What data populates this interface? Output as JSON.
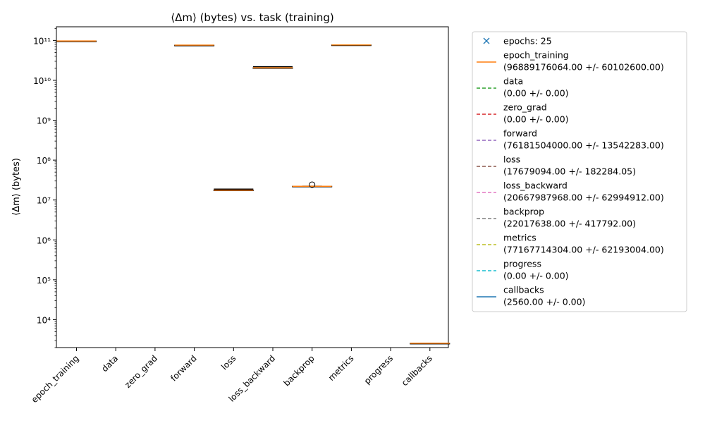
{
  "chart_data": {
    "type": "box",
    "title": "⟨Δm⟩ (bytes) vs. task (training)",
    "ylabel": "⟨Δm⟩ (bytes)",
    "xlabel": "",
    "yscale": "log",
    "ylim": [
      2000,
      220000000000.0
    ],
    "y_ticks": [
      {
        "value": 10000,
        "label": "10⁴"
      },
      {
        "value": 100000,
        "label": "10⁵"
      },
      {
        "value": 1000000,
        "label": "10⁶"
      },
      {
        "value": 10000000,
        "label": "10⁷"
      },
      {
        "value": 100000000,
        "label": "10⁸"
      },
      {
        "value": 1000000000,
        "label": "10⁹"
      },
      {
        "value": 10000000000,
        "label": "10¹⁰"
      },
      {
        "value": 100000000000,
        "label": "10¹¹"
      }
    ],
    "categories": [
      "epoch_training",
      "data",
      "zero_grad",
      "forward",
      "loss",
      "loss_backward",
      "backprop",
      "metrics",
      "progress",
      "callbacks"
    ],
    "boxes": [
      {
        "category": "epoch_training",
        "q1": 96860000000,
        "median": 96889176064,
        "q3": 96920000000,
        "whisker_low": 96790000000,
        "whisker_high": 96990000000,
        "mean_line": false,
        "outliers": []
      },
      {
        "category": "data",
        "q1": null,
        "median": null,
        "q3": null,
        "whisker_low": null,
        "whisker_high": null,
        "outliers": []
      },
      {
        "category": "zero_grad",
        "q1": null,
        "median": null,
        "q3": null,
        "whisker_low": null,
        "whisker_high": null,
        "outliers": []
      },
      {
        "category": "forward",
        "q1": 76170000000,
        "median": 76181504000,
        "q3": 76195000000,
        "whisker_low": 76150000000,
        "whisker_high": 76210000000,
        "mean_line": false,
        "outliers": []
      },
      {
        "category": "loss",
        "q1": 17560000.0,
        "median": 17679094,
        "q3": 17790000,
        "whisker_low": 17300000,
        "whisker_high": 18000000,
        "mean_line": true,
        "outliers": []
      },
      {
        "category": "loss_backward",
        "q1": 20620000000,
        "median": 20667987968,
        "q3": 20720000000,
        "whisker_low": 20560000000,
        "whisker_high": 20780000000,
        "mean_line": true,
        "outliers": []
      },
      {
        "category": "backprop",
        "q1": 21800000,
        "median": 22017638,
        "q3": 22200000,
        "whisker_low": 21600000,
        "whisker_high": 22400000,
        "mean_line": false,
        "outliers": [
          24200000
        ]
      },
      {
        "category": "metrics",
        "q1": 77140000000,
        "median": 77167714304,
        "q3": 77200000000,
        "whisker_low": 77090000000,
        "whisker_high": 77250000000,
        "mean_line": false,
        "outliers": []
      },
      {
        "category": "progress",
        "q1": null,
        "median": null,
        "q3": null,
        "whisker_low": null,
        "whisker_high": null,
        "outliers": []
      },
      {
        "category": "callbacks",
        "q1": 2560,
        "median": 2560,
        "q3": 2560,
        "whisker_low": 2560,
        "whisker_high": 2560,
        "mean_line": false,
        "outliers": []
      }
    ],
    "legend": {
      "placement": "outside-right",
      "entries": [
        {
          "marker": "x",
          "style": "none",
          "color": "#1f77b4",
          "line1": "epochs: 25",
          "line2": ""
        },
        {
          "marker": "line",
          "style": "solid",
          "color": "#ff7f0e",
          "line1": "epoch_training",
          "line2": "(96889176064.00 +/- 60102600.00)"
        },
        {
          "marker": "line",
          "style": "dashed",
          "color": "#2ca02c",
          "line1": "data",
          "line2": "(0.00 +/- 0.00)"
        },
        {
          "marker": "line",
          "style": "dashed",
          "color": "#d62728",
          "line1": "zero_grad",
          "line2": "(0.00 +/- 0.00)"
        },
        {
          "marker": "line",
          "style": "dashed",
          "color": "#9467bd",
          "line1": "forward",
          "line2": "(76181504000.00 +/- 13542283.00)"
        },
        {
          "marker": "line",
          "style": "dashed",
          "color": "#8c564b",
          "line1": "loss",
          "line2": "(17679094.00 +/- 182284.05)"
        },
        {
          "marker": "line",
          "style": "dashed",
          "color": "#e377c2",
          "line1": "loss_backward",
          "line2": "(20667987968.00 +/- 62994912.00)"
        },
        {
          "marker": "line",
          "style": "dashed",
          "color": "#7f7f7f",
          "line1": "backprop",
          "line2": "(22017638.00 +/- 417792.00)"
        },
        {
          "marker": "line",
          "style": "dashed",
          "color": "#bcbd22",
          "line1": "metrics",
          "line2": "(77167714304.00 +/- 62193004.00)"
        },
        {
          "marker": "line",
          "style": "dashed",
          "color": "#17becf",
          "line1": "progress",
          "line2": "(0.00 +/- 0.00)"
        },
        {
          "marker": "line",
          "style": "solid",
          "color": "#1f77b4",
          "line1": "callbacks",
          "line2": "(2560.00 +/- 0.00)"
        }
      ]
    },
    "colors": {
      "median": "#ff7f0e",
      "box": "#000000",
      "mean": "#000000"
    }
  }
}
